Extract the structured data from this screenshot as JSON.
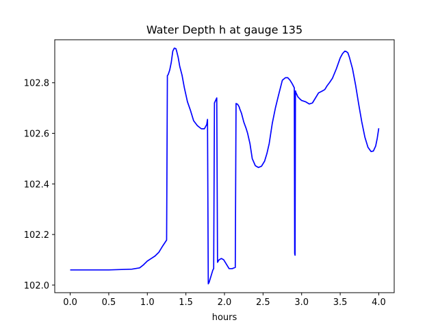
{
  "chart_data": {
    "type": "line",
    "title": "Water Depth h at gauge 135",
    "xlabel": "hours",
    "ylabel": "",
    "xlim": [
      -0.2,
      4.2
    ],
    "ylim": [
      101.97,
      102.97
    ],
    "xticks": [
      0.0,
      0.5,
      1.0,
      1.5,
      2.0,
      2.5,
      3.0,
      3.5,
      4.0
    ],
    "xtick_labels": [
      "0.0",
      "0.5",
      "1.0",
      "1.5",
      "2.0",
      "2.5",
      "3.0",
      "3.5",
      "4.0"
    ],
    "yticks": [
      102.0,
      102.2,
      102.4,
      102.6,
      102.8
    ],
    "ytick_labels": [
      "102.0",
      "102.2",
      "102.4",
      "102.6",
      "102.8"
    ],
    "grid": false,
    "legend": "none",
    "series": [
      {
        "color": "#0000ff",
        "x": [
          0.0,
          0.5,
          0.8,
          0.9,
          0.95,
          1.0,
          1.05,
          1.1,
          1.15,
          1.2,
          1.25,
          1.26,
          1.27,
          1.29,
          1.31,
          1.33,
          1.35,
          1.37,
          1.38,
          1.4,
          1.42,
          1.45,
          1.48,
          1.52,
          1.56,
          1.6,
          1.65,
          1.7,
          1.74,
          1.77,
          1.78,
          1.79,
          1.8,
          1.85,
          1.86,
          1.87,
          1.9,
          1.91,
          1.93,
          1.96,
          1.99,
          2.02,
          2.06,
          2.1,
          2.14,
          2.15,
          2.17,
          2.19,
          2.2,
          2.22,
          2.25,
          2.28,
          2.3,
          2.33,
          2.36,
          2.4,
          2.44,
          2.48,
          2.52,
          2.55,
          2.58,
          2.62,
          2.66,
          2.7,
          2.75,
          2.79,
          2.82,
          2.85,
          2.88,
          2.905,
          2.91,
          2.915,
          2.92,
          2.925,
          2.95,
          2.98,
          3.0,
          3.05,
          3.1,
          3.14,
          3.18,
          3.22,
          3.26,
          3.3,
          3.33,
          3.36,
          3.4,
          3.45,
          3.5,
          3.53,
          3.56,
          3.58,
          3.6,
          3.62,
          3.66,
          3.7,
          3.74,
          3.78,
          3.82,
          3.86,
          3.9,
          3.93,
          3.96,
          3.98,
          4.0
        ],
        "y": [
          102.06,
          102.06,
          102.063,
          102.068,
          102.08,
          102.095,
          102.105,
          102.115,
          102.13,
          102.155,
          102.178,
          102.828,
          102.832,
          102.85,
          102.88,
          102.925,
          102.937,
          102.935,
          102.925,
          102.9,
          102.865,
          102.83,
          102.78,
          102.725,
          102.69,
          102.65,
          102.63,
          102.618,
          102.618,
          102.635,
          102.655,
          102.005,
          102.01,
          102.06,
          102.065,
          102.72,
          102.74,
          102.09,
          102.1,
          102.105,
          102.1,
          102.085,
          102.065,
          102.065,
          102.07,
          102.718,
          102.715,
          102.705,
          102.695,
          102.68,
          102.645,
          102.62,
          102.6,
          102.56,
          102.5,
          102.472,
          102.465,
          102.47,
          102.49,
          102.52,
          102.56,
          102.64,
          102.7,
          102.75,
          102.81,
          102.82,
          102.82,
          102.81,
          102.795,
          102.78,
          102.125,
          102.118,
          102.768,
          102.762,
          102.745,
          102.735,
          102.73,
          102.725,
          102.716,
          102.72,
          102.74,
          102.76,
          102.766,
          102.773,
          102.788,
          102.8,
          102.818,
          102.855,
          102.898,
          102.915,
          102.925,
          102.923,
          102.918,
          102.9,
          102.855,
          102.79,
          102.715,
          102.645,
          102.585,
          102.545,
          102.528,
          102.53,
          102.55,
          102.58,
          102.62
        ]
      }
    ]
  }
}
